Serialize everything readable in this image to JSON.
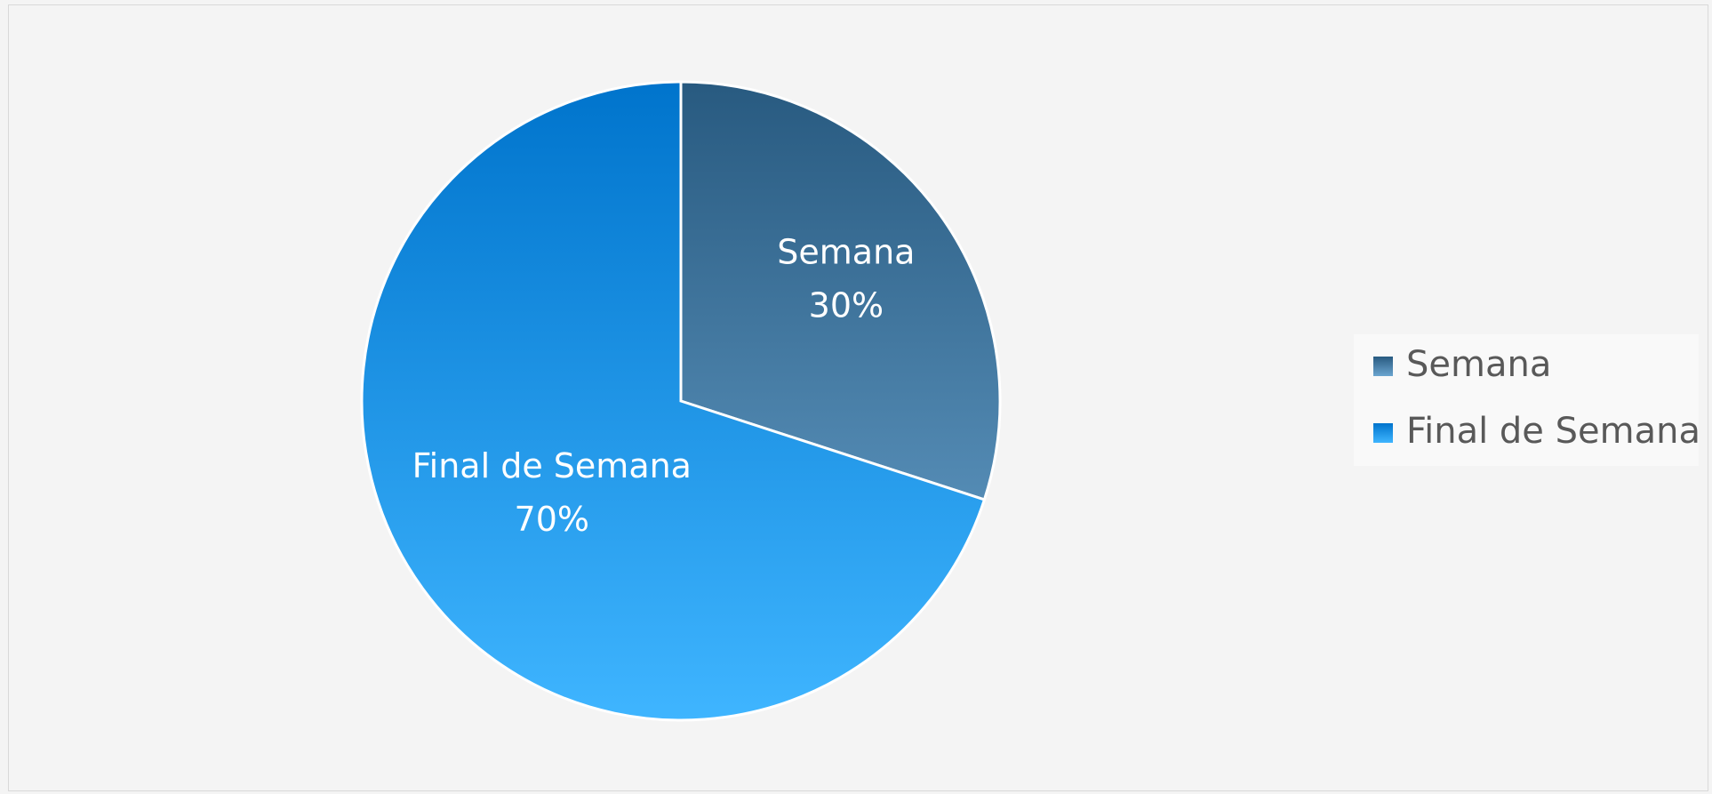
{
  "chart_data": {
    "type": "pie",
    "categories": [
      "Semana",
      "Final de Semana"
    ],
    "values": [
      30,
      70
    ],
    "value_labels": [
      "30%",
      "70%"
    ],
    "colors": [
      [
        "#285a80",
        "#6ba5d0"
      ],
      [
        "#0074cc",
        "#3fb5ff"
      ]
    ],
    "legend": "right"
  }
}
